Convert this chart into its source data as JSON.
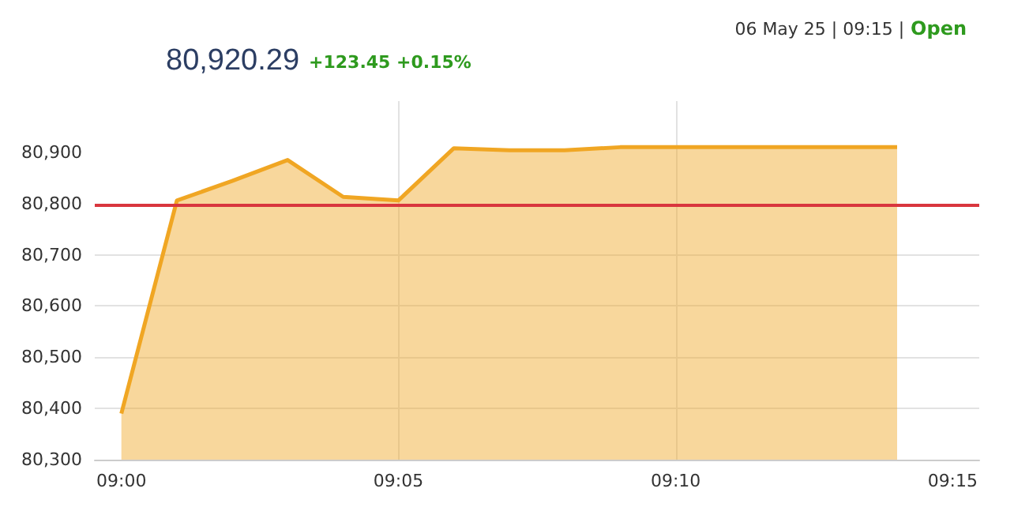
{
  "chart_data": {
    "type": "area",
    "title": "80,920.29",
    "subtitle": "+123.45 +0.15%",
    "annotations": [
      "06 May 25 | 09:15 |",
      "Open"
    ],
    "x": [
      9,
      9.0167,
      9.0333,
      9.05,
      9.0667,
      9.0833,
      9.1,
      9.1167,
      9.1333,
      9.15,
      9.1667,
      9.1833,
      9.2,
      9.2167,
      9.2333
    ],
    "series": [
      {
        "color": "#f0a623",
        "values": [
          80390,
          80806,
          80844,
          80885,
          80813,
          80806,
          80908,
          80904,
          80904,
          80910,
          80910,
          80910,
          80910,
          80910,
          80910
        ]
      }
    ],
    "xlim": [
      8.992,
      9.258
    ],
    "xticks": [
      {
        "value": 9,
        "label": "09:00"
      },
      {
        "value": 9.0833,
        "label": "09:05"
      },
      {
        "value": 9.1667,
        "label": "09:10"
      },
      {
        "value": 9.25,
        "label": "09:15"
      }
    ],
    "ylim": [
      80300,
      81000
    ],
    "yticks": [
      {
        "value": 80300,
        "label": "80,300"
      },
      {
        "value": 80400,
        "label": "80,400"
      },
      {
        "value": 80500,
        "label": "80,500"
      },
      {
        "value": 80600,
        "label": "80,600"
      },
      {
        "value": 80700,
        "label": "80,700"
      },
      {
        "value": 80800,
        "label": "80,800"
      },
      {
        "value": 80900,
        "label": "80,900"
      }
    ],
    "ref_lines": [
      {
        "axis": "y",
        "value": 80797,
        "color": "#d9363e"
      }
    ],
    "grid": true,
    "marker": "none",
    "line_style": "solid"
  }
}
